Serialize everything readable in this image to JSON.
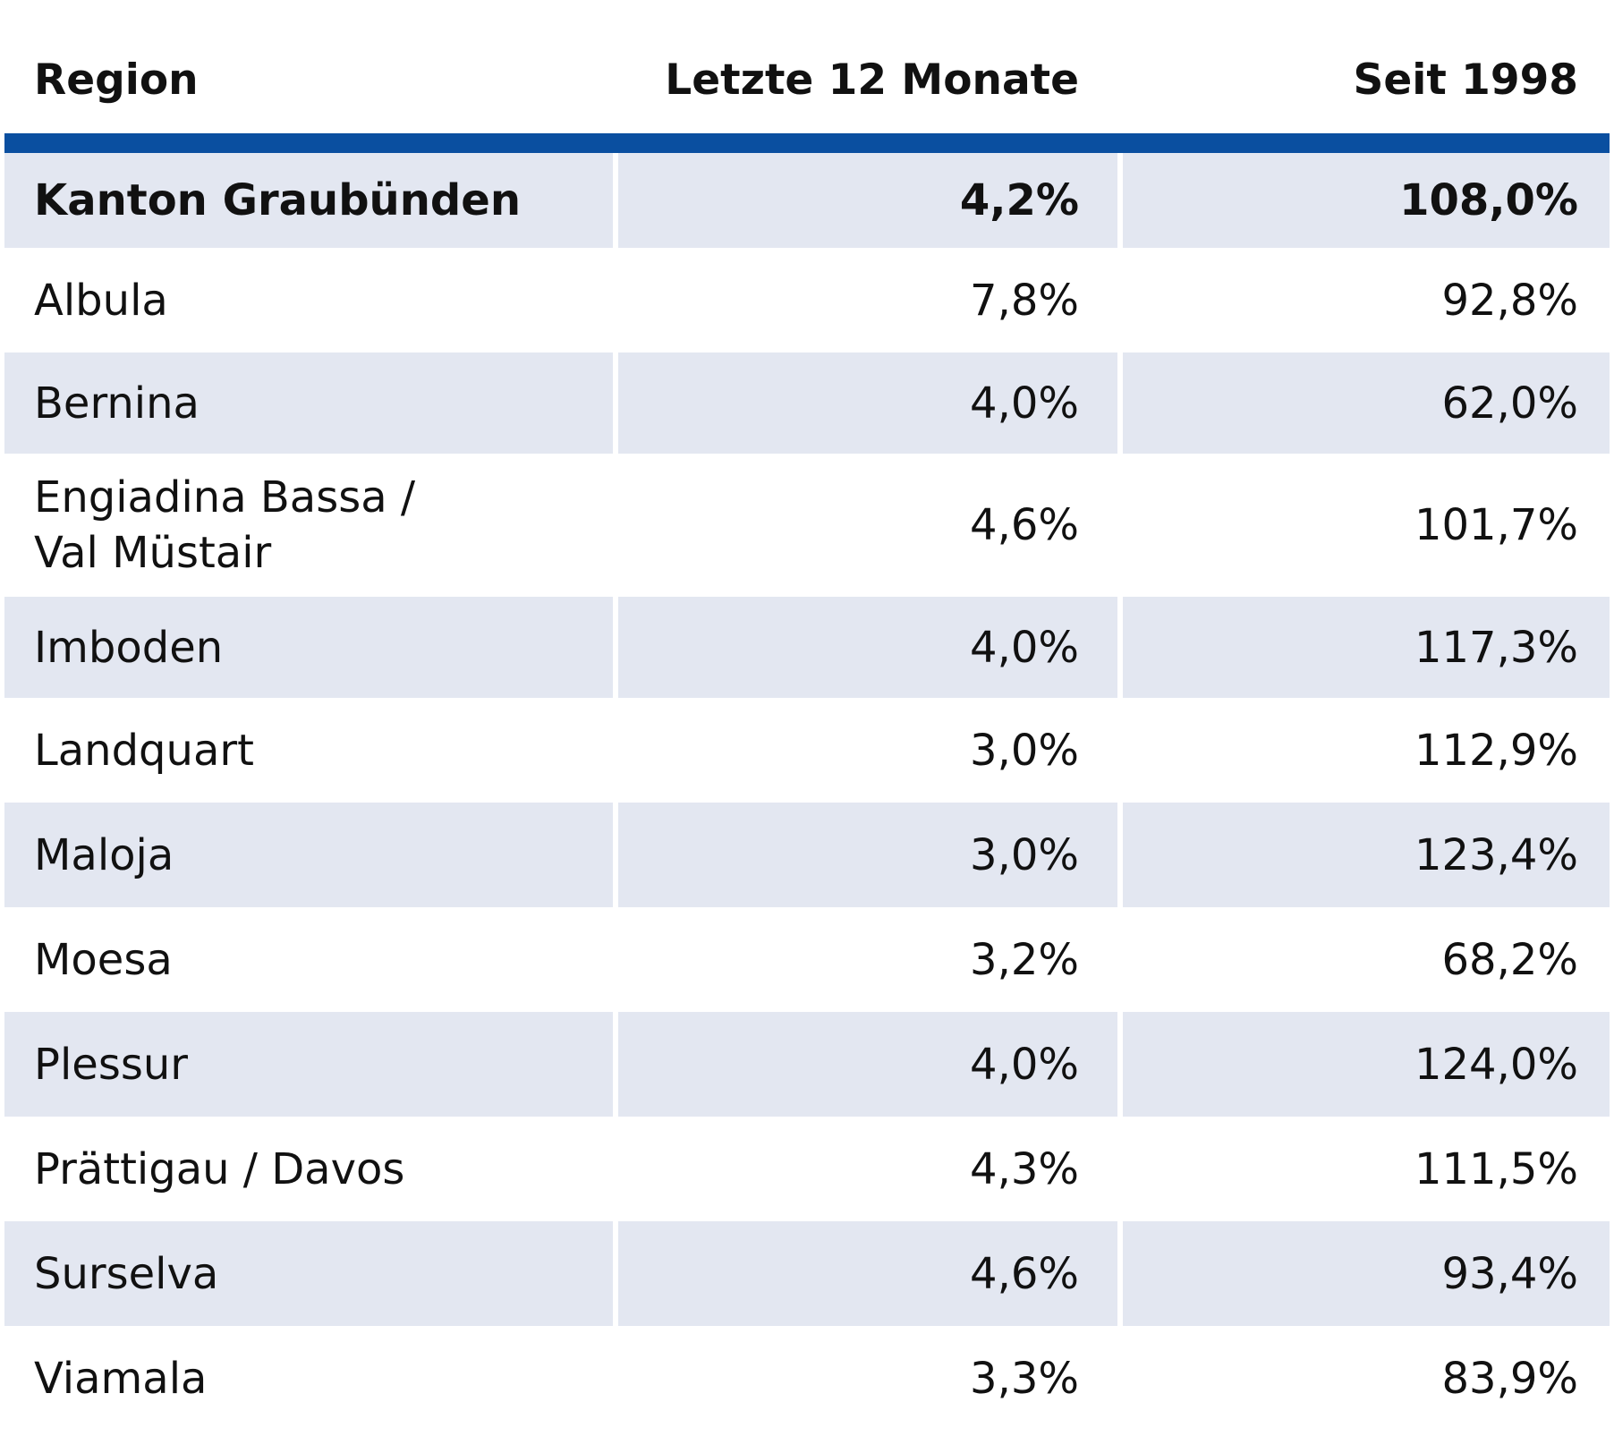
{
  "chart_data": {
    "type": "table",
    "columns": [
      "Region",
      "Letzte 12 Monate",
      "Seit 1998"
    ],
    "rows": [
      {
        "region": "Kanton Graubünden",
        "last12": "4,2%",
        "since1998": "108,0%",
        "bold": true
      },
      {
        "region": "Albula",
        "last12": "7,8%",
        "since1998": "92,8%"
      },
      {
        "region": "Bernina",
        "last12": "4,0%",
        "since1998": "62,0%"
      },
      {
        "region": "Engiadina Bassa /\nVal Müstair",
        "last12": "4,6%",
        "since1998": "101,7%"
      },
      {
        "region": "Imboden",
        "last12": "4,0%",
        "since1998": "117,3%"
      },
      {
        "region": "Landquart",
        "last12": "3,0%",
        "since1998": "112,9%"
      },
      {
        "region": "Maloja",
        "last12": "3,0%",
        "since1998": "123,4%"
      },
      {
        "region": "Moesa",
        "last12": "3,2%",
        "since1998": "68,2%"
      },
      {
        "region": "Plessur",
        "last12": "4,0%",
        "since1998": "124,0%"
      },
      {
        "region": "Prättigau / Davos",
        "last12": "4,3%",
        "since1998": "111,5%"
      },
      {
        "region": "Surselva",
        "last12": "4,6%",
        "since1998": "93,4%"
      },
      {
        "region": "Viamala",
        "last12": "3,3%",
        "since1998": "83,9%"
      }
    ]
  },
  "colors": {
    "header_rule": "#0a4fa0",
    "band": "#e3e7f1",
    "text": "#111111"
  }
}
